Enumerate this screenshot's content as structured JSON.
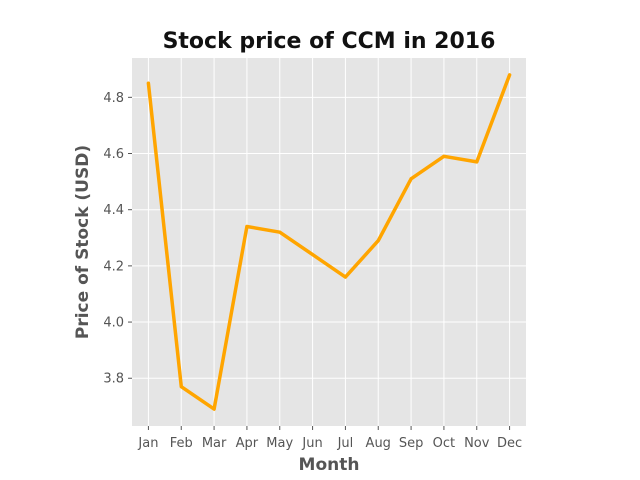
{
  "chart_data": {
    "type": "line",
    "title": "Stock price of CCM in 2016",
    "xlabel": "Month",
    "ylabel": "Price of Stock (USD)",
    "categories": [
      "Jan",
      "Feb",
      "Mar",
      "Apr",
      "May",
      "Jun",
      "Jul",
      "Aug",
      "Sep",
      "Oct",
      "Nov",
      "Dec"
    ],
    "series": [
      {
        "values": [
          4.85,
          3.77,
          3.69,
          4.34,
          4.32,
          4.24,
          4.16,
          4.29,
          4.51,
          4.59,
          4.57,
          4.88
        ]
      }
    ],
    "ylim": [
      3.63,
      4.94
    ],
    "yticks": [
      3.8,
      4.0,
      4.2,
      4.4,
      4.6,
      4.8
    ],
    "ytick_labels": [
      "3.8",
      "4.0",
      "4.2",
      "4.4",
      "4.6",
      "4.8"
    ],
    "grid": true,
    "line_color": "#ffa500",
    "background_color": "#e5e5e5",
    "grid_color": "#ffffff"
  }
}
